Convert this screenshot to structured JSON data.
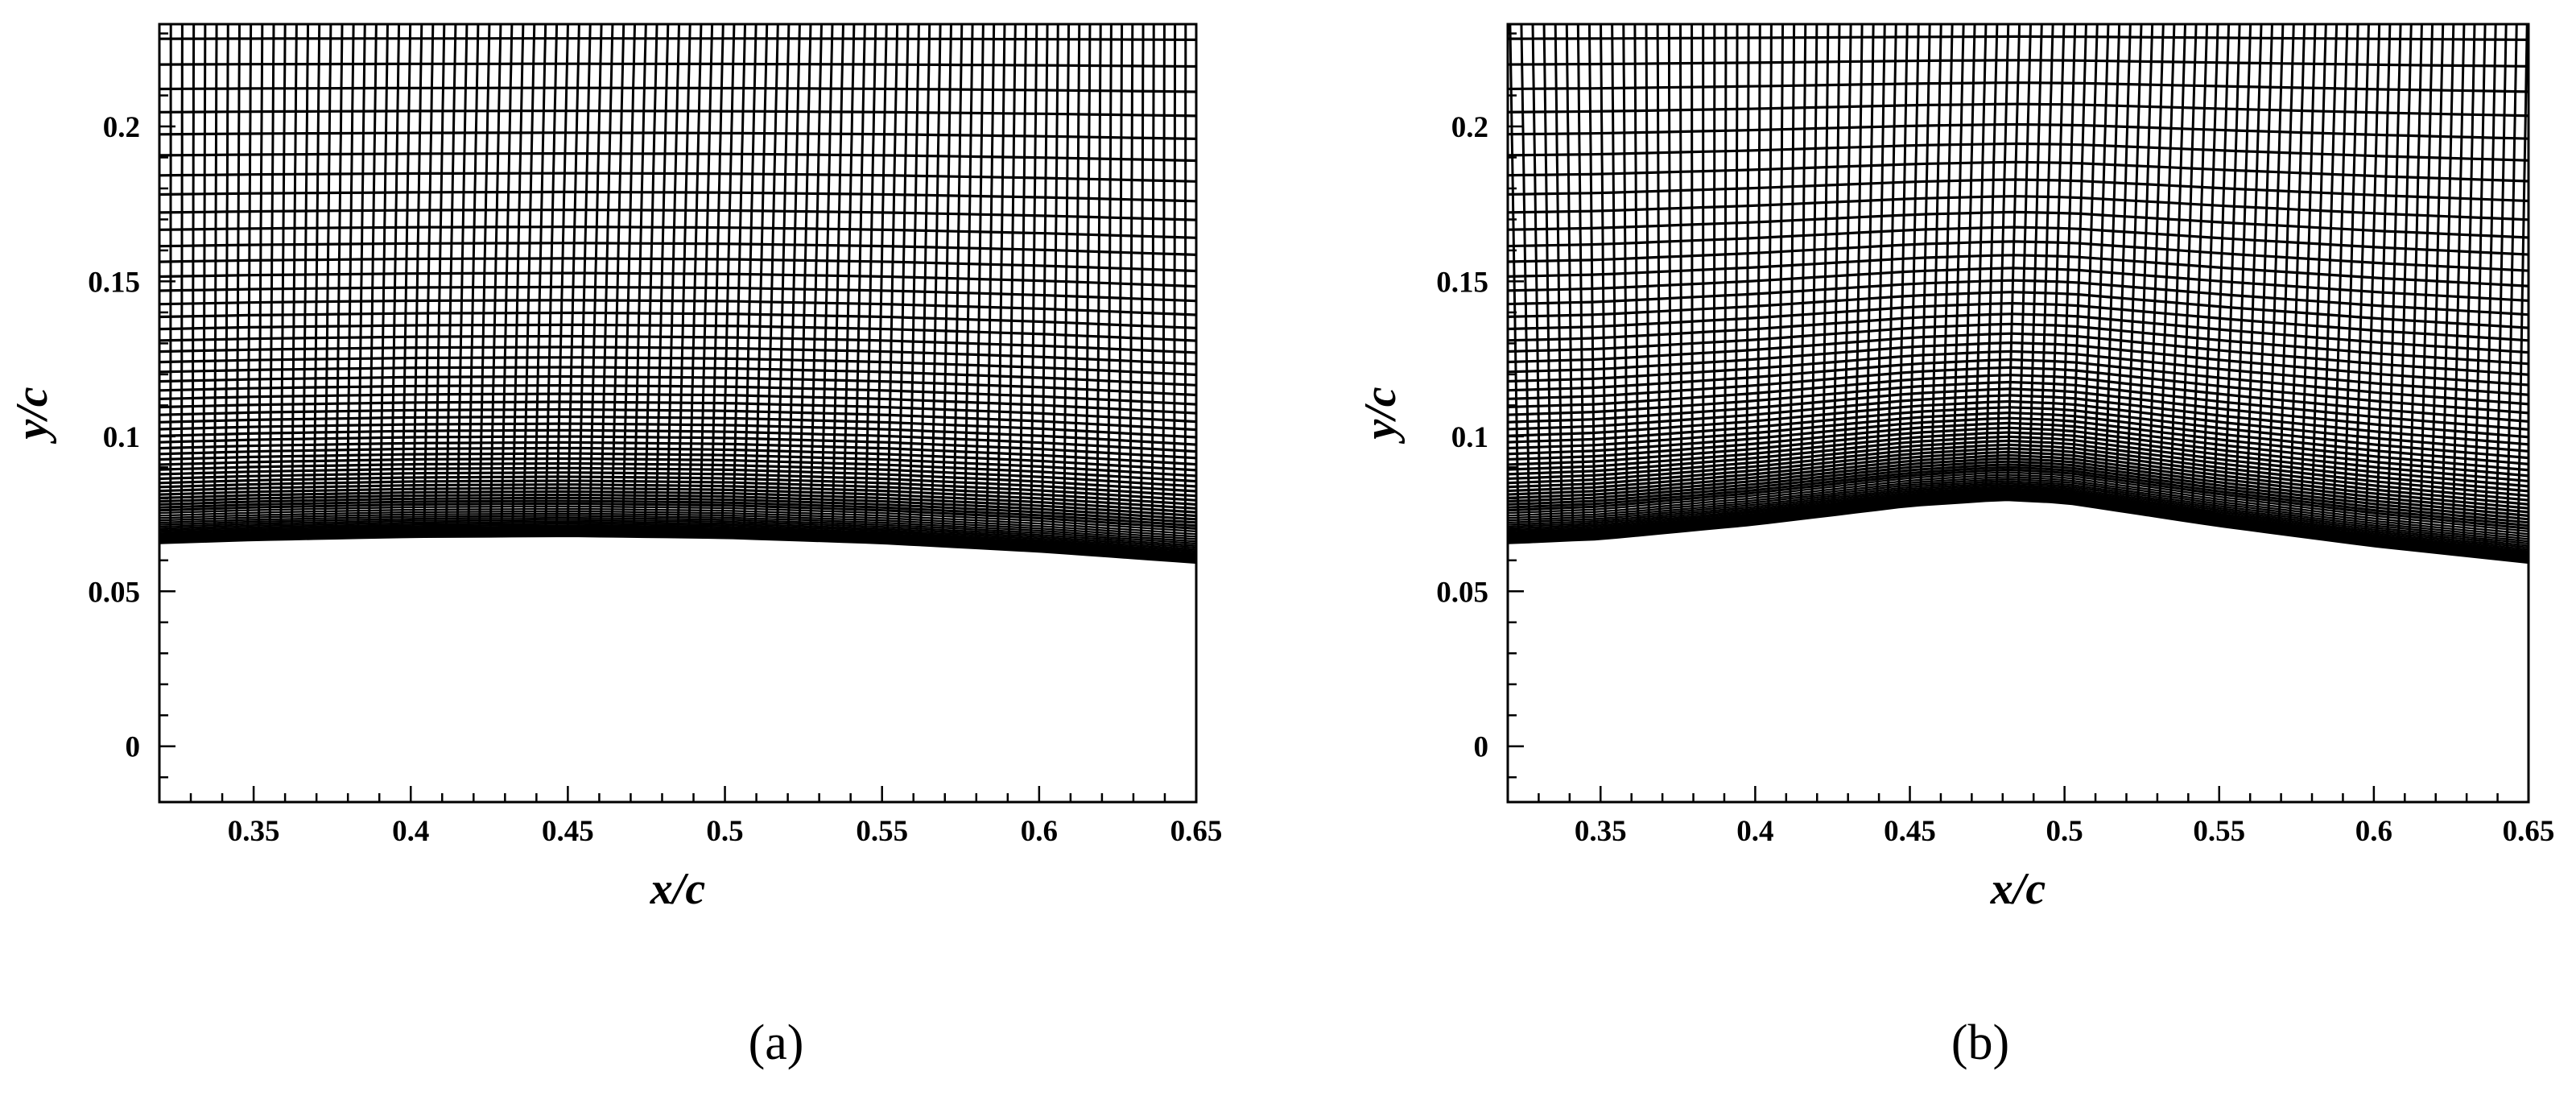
{
  "chart_data": [
    {
      "type": "mesh",
      "panel_label": "(a)",
      "xlabel": "x/c",
      "ylabel": "y/c",
      "xlim": [
        0.32,
        0.65
      ],
      "ylim": [
        -0.018,
        0.233
      ],
      "x_ticks": [
        0.35,
        0.4,
        0.45,
        0.5,
        0.55,
        0.6,
        0.65
      ],
      "x_tick_labels": [
        "0.35",
        "0.4",
        "0.45",
        "0.5",
        "0.55",
        "0.6",
        "0.65"
      ],
      "y_ticks": [
        0,
        0.05,
        0.1,
        0.15,
        0.2
      ],
      "y_tick_labels": [
        "0",
        "0.05",
        "0.1",
        "0.15",
        "0.2"
      ],
      "wall_surface": {
        "x": [
          0.32,
          0.35,
          0.4,
          0.45,
          0.5,
          0.55,
          0.6,
          0.65
        ],
        "y": [
          0.0655,
          0.0665,
          0.0675,
          0.0678,
          0.0672,
          0.0655,
          0.0628,
          0.0592
        ]
      },
      "bump": false,
      "grid_columns": 95,
      "grid_rows": 65
    },
    {
      "type": "mesh",
      "panel_label": "(b)",
      "xlabel": "x/c",
      "ylabel": "y/c",
      "xlim": [
        0.32,
        0.65
      ],
      "ylim": [
        -0.018,
        0.233
      ],
      "x_ticks": [
        0.35,
        0.4,
        0.45,
        0.5,
        0.55,
        0.6,
        0.65
      ],
      "x_tick_labels": [
        "0.35",
        "0.4",
        "0.45",
        "0.5",
        "0.55",
        "0.6",
        "0.65"
      ],
      "y_ticks": [
        0,
        0.05,
        0.1,
        0.15,
        0.2
      ],
      "y_tick_labels": [
        "0",
        "0.05",
        "0.1",
        "0.15",
        "0.2"
      ],
      "wall_surface": {
        "x": [
          0.32,
          0.35,
          0.4,
          0.45,
          0.48,
          0.5,
          0.55,
          0.6,
          0.65
        ],
        "y": [
          0.0655,
          0.0668,
          0.0715,
          0.0775,
          0.0795,
          0.0785,
          0.071,
          0.0645,
          0.0592
        ]
      },
      "bump": true,
      "grid_columns": 95,
      "grid_rows": 65
    }
  ]
}
